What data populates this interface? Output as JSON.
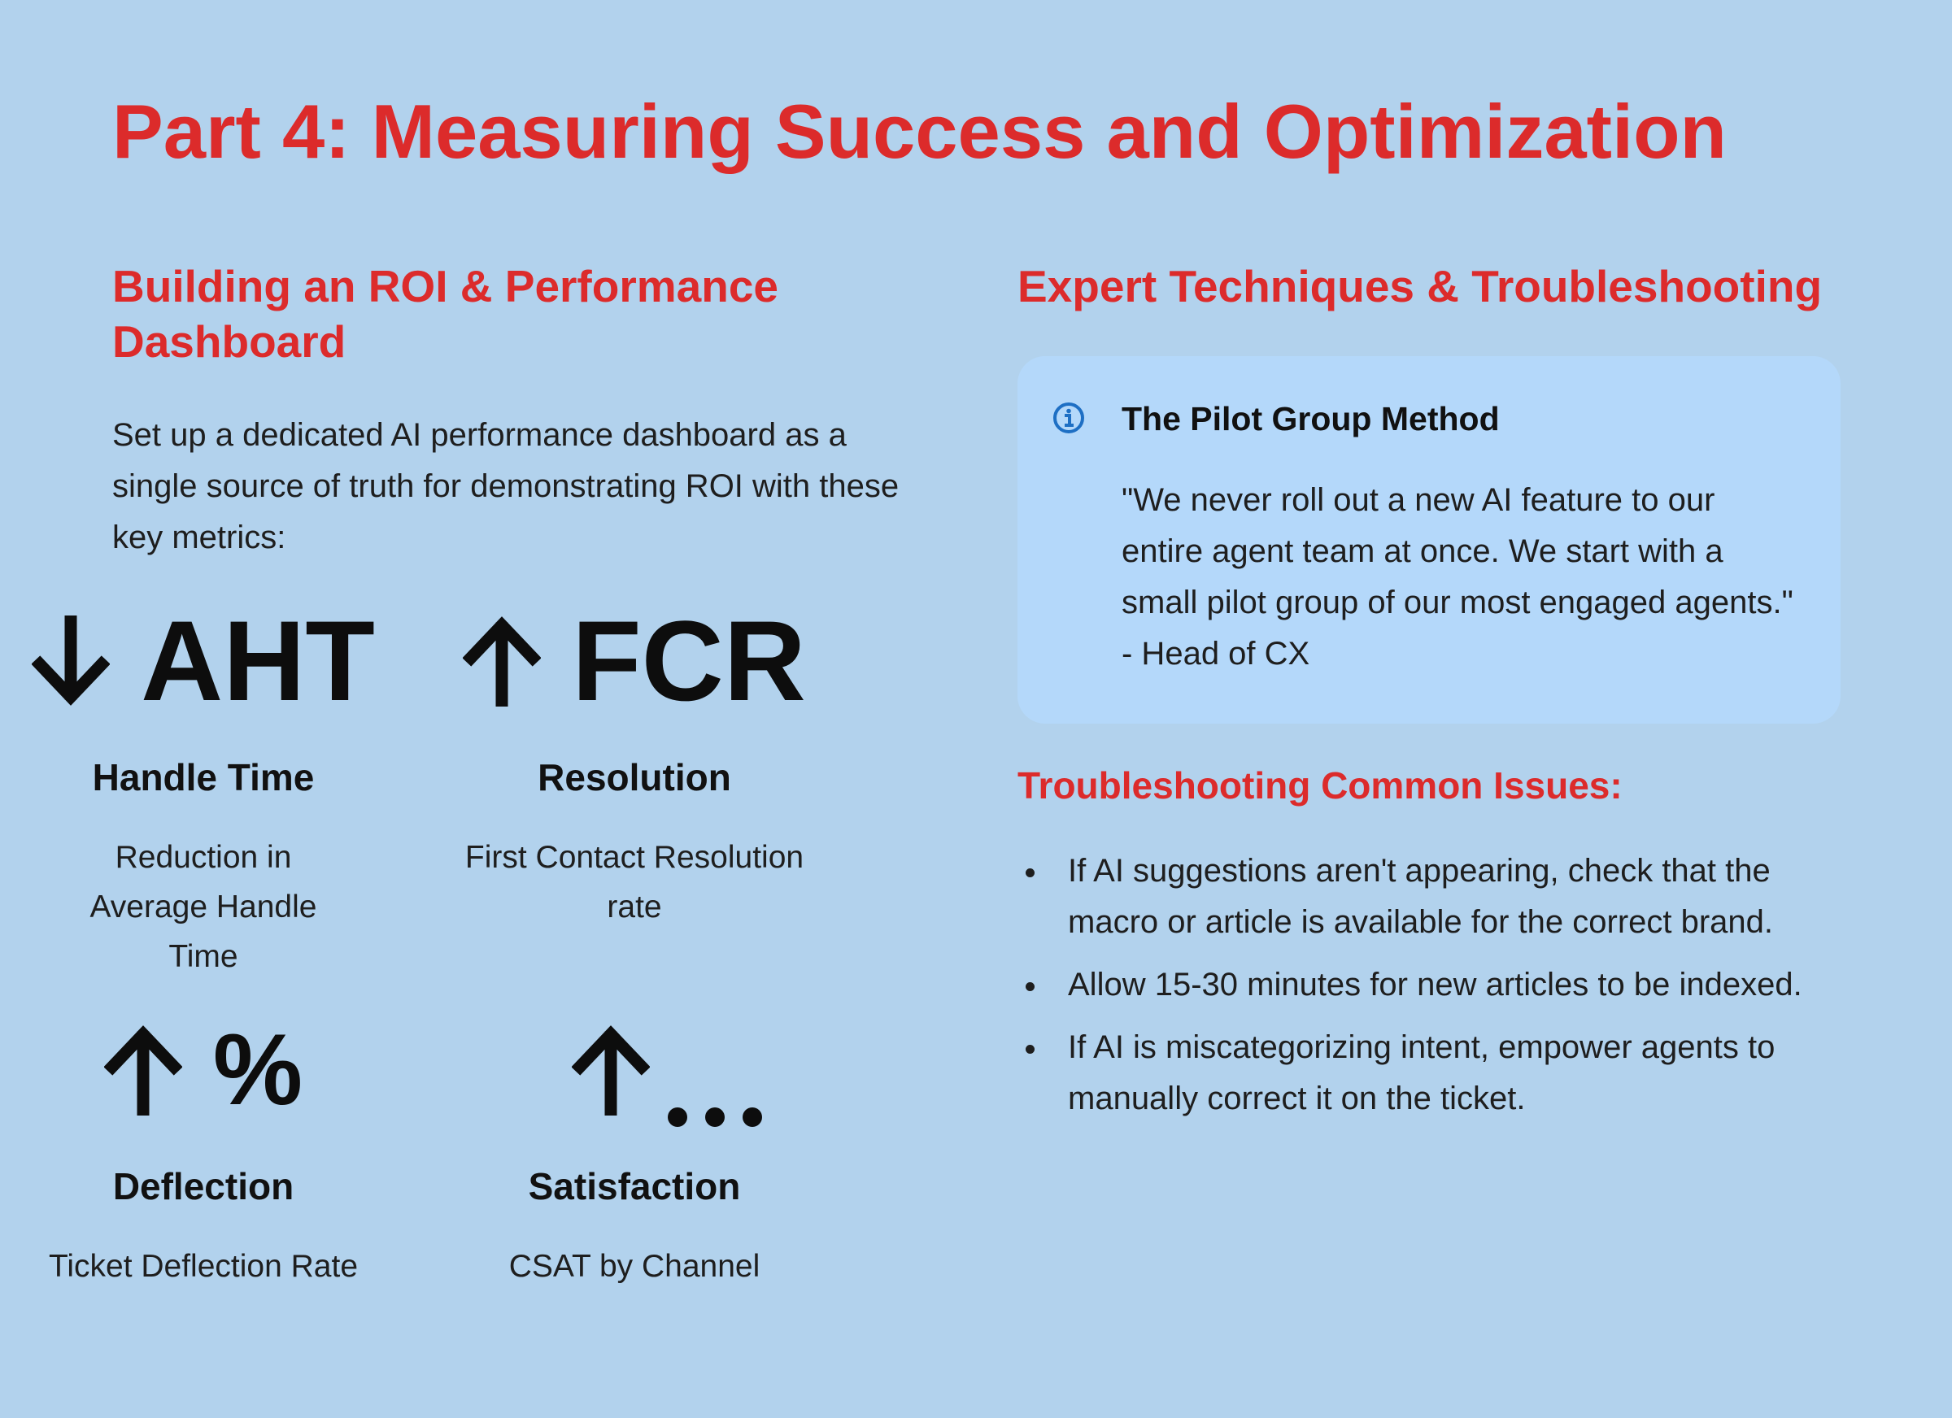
{
  "page": {
    "title": "Part 4: Measuring Success and Optimization"
  },
  "left": {
    "heading": "Building an ROI & Performance Dashboard",
    "intro": "Set up a dedicated AI performance dashboard as a single source of truth for demonstrating ROI with these key metrics:",
    "metrics": [
      {
        "arrow": "down-arrow-icon",
        "symbol": "AHT",
        "label": "Handle Time",
        "description": "Reduction in Average Handle Time"
      },
      {
        "arrow": "up-arrow-icon",
        "symbol": "FCR",
        "label": "Resolution",
        "description": "First Contact Resolution rate"
      },
      {
        "arrow": "up-arrow-icon",
        "symbol": "%",
        "label": "Deflection",
        "description": "Ticket Deflection Rate"
      },
      {
        "arrow": "up-arrow-icon",
        "symbol": "ellipsis-icon",
        "label": "Satisfaction",
        "description": "CSAT by Channel"
      }
    ]
  },
  "right": {
    "heading": "Expert Techniques & Troubleshooting",
    "callout": {
      "icon": "info-icon",
      "title": "The Pilot Group Method",
      "quote": "\"We never roll out a new AI feature to our entire agent team at once. We start with a small pilot group of our most engaged agents.\" - Head of CX"
    },
    "troubleshooting_heading": "Troubleshooting Common Issues:",
    "issues": [
      "If AI suggestions aren't appearing, check that the macro or article is available for the correct brand.",
      "Allow 15-30 minutes for new articles to be indexed.",
      "If AI is miscategorizing intent, empower agents to manually correct it on the ticket."
    ]
  },
  "colors": {
    "background": "#b2d2ed",
    "accent_red": "#dc2b2b",
    "card_background": "#b4d8fa",
    "info_icon_blue": "#1e6fc4"
  }
}
